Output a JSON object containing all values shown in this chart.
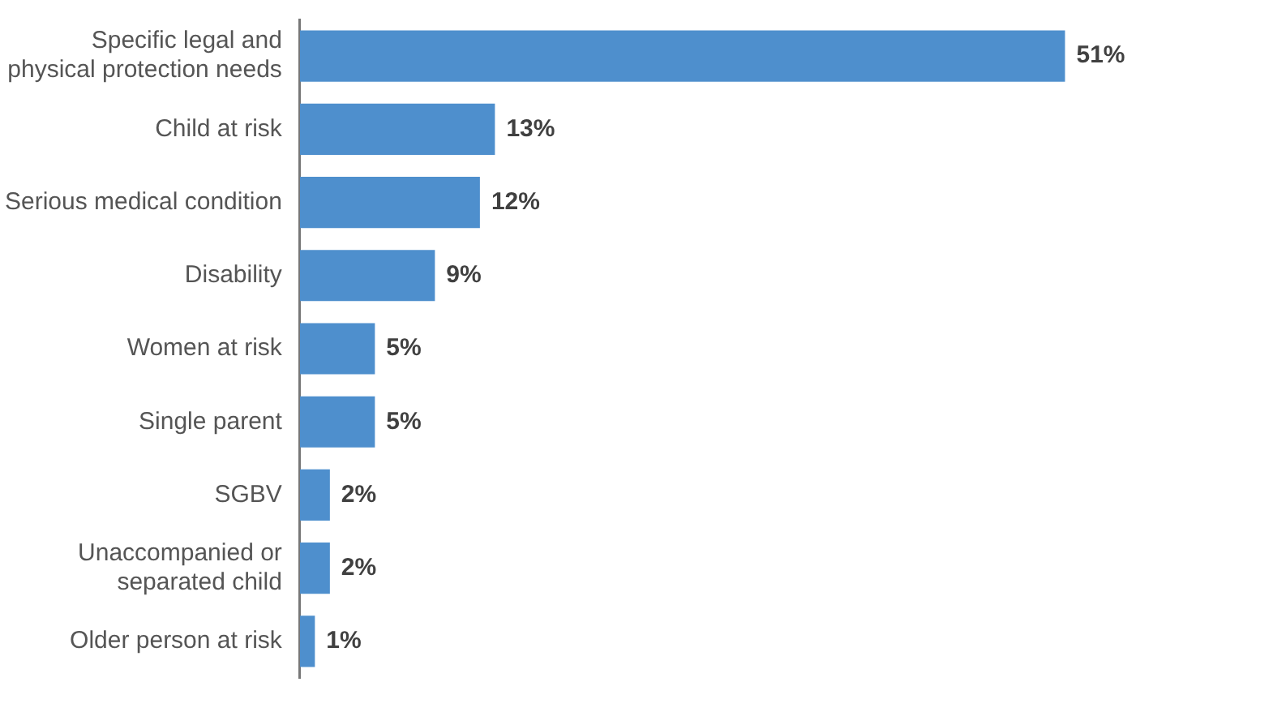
{
  "chart_data": {
    "type": "bar",
    "orientation": "horizontal",
    "categories": [
      "Specific legal and physical protection needs",
      "Child at risk",
      "Serious medical condition",
      "Disability",
      "Women at risk",
      "Single parent",
      "SGBV",
      "Unaccompanied or separated child",
      "Older person at risk"
    ],
    "values": [
      51,
      13,
      12,
      9,
      5,
      5,
      2,
      2,
      1
    ],
    "value_labels": [
      "51%",
      "13%",
      "12%",
      "9%",
      "5%",
      "5%",
      "2%",
      "2%",
      "1%"
    ],
    "color": "#4e8fcd"
  }
}
